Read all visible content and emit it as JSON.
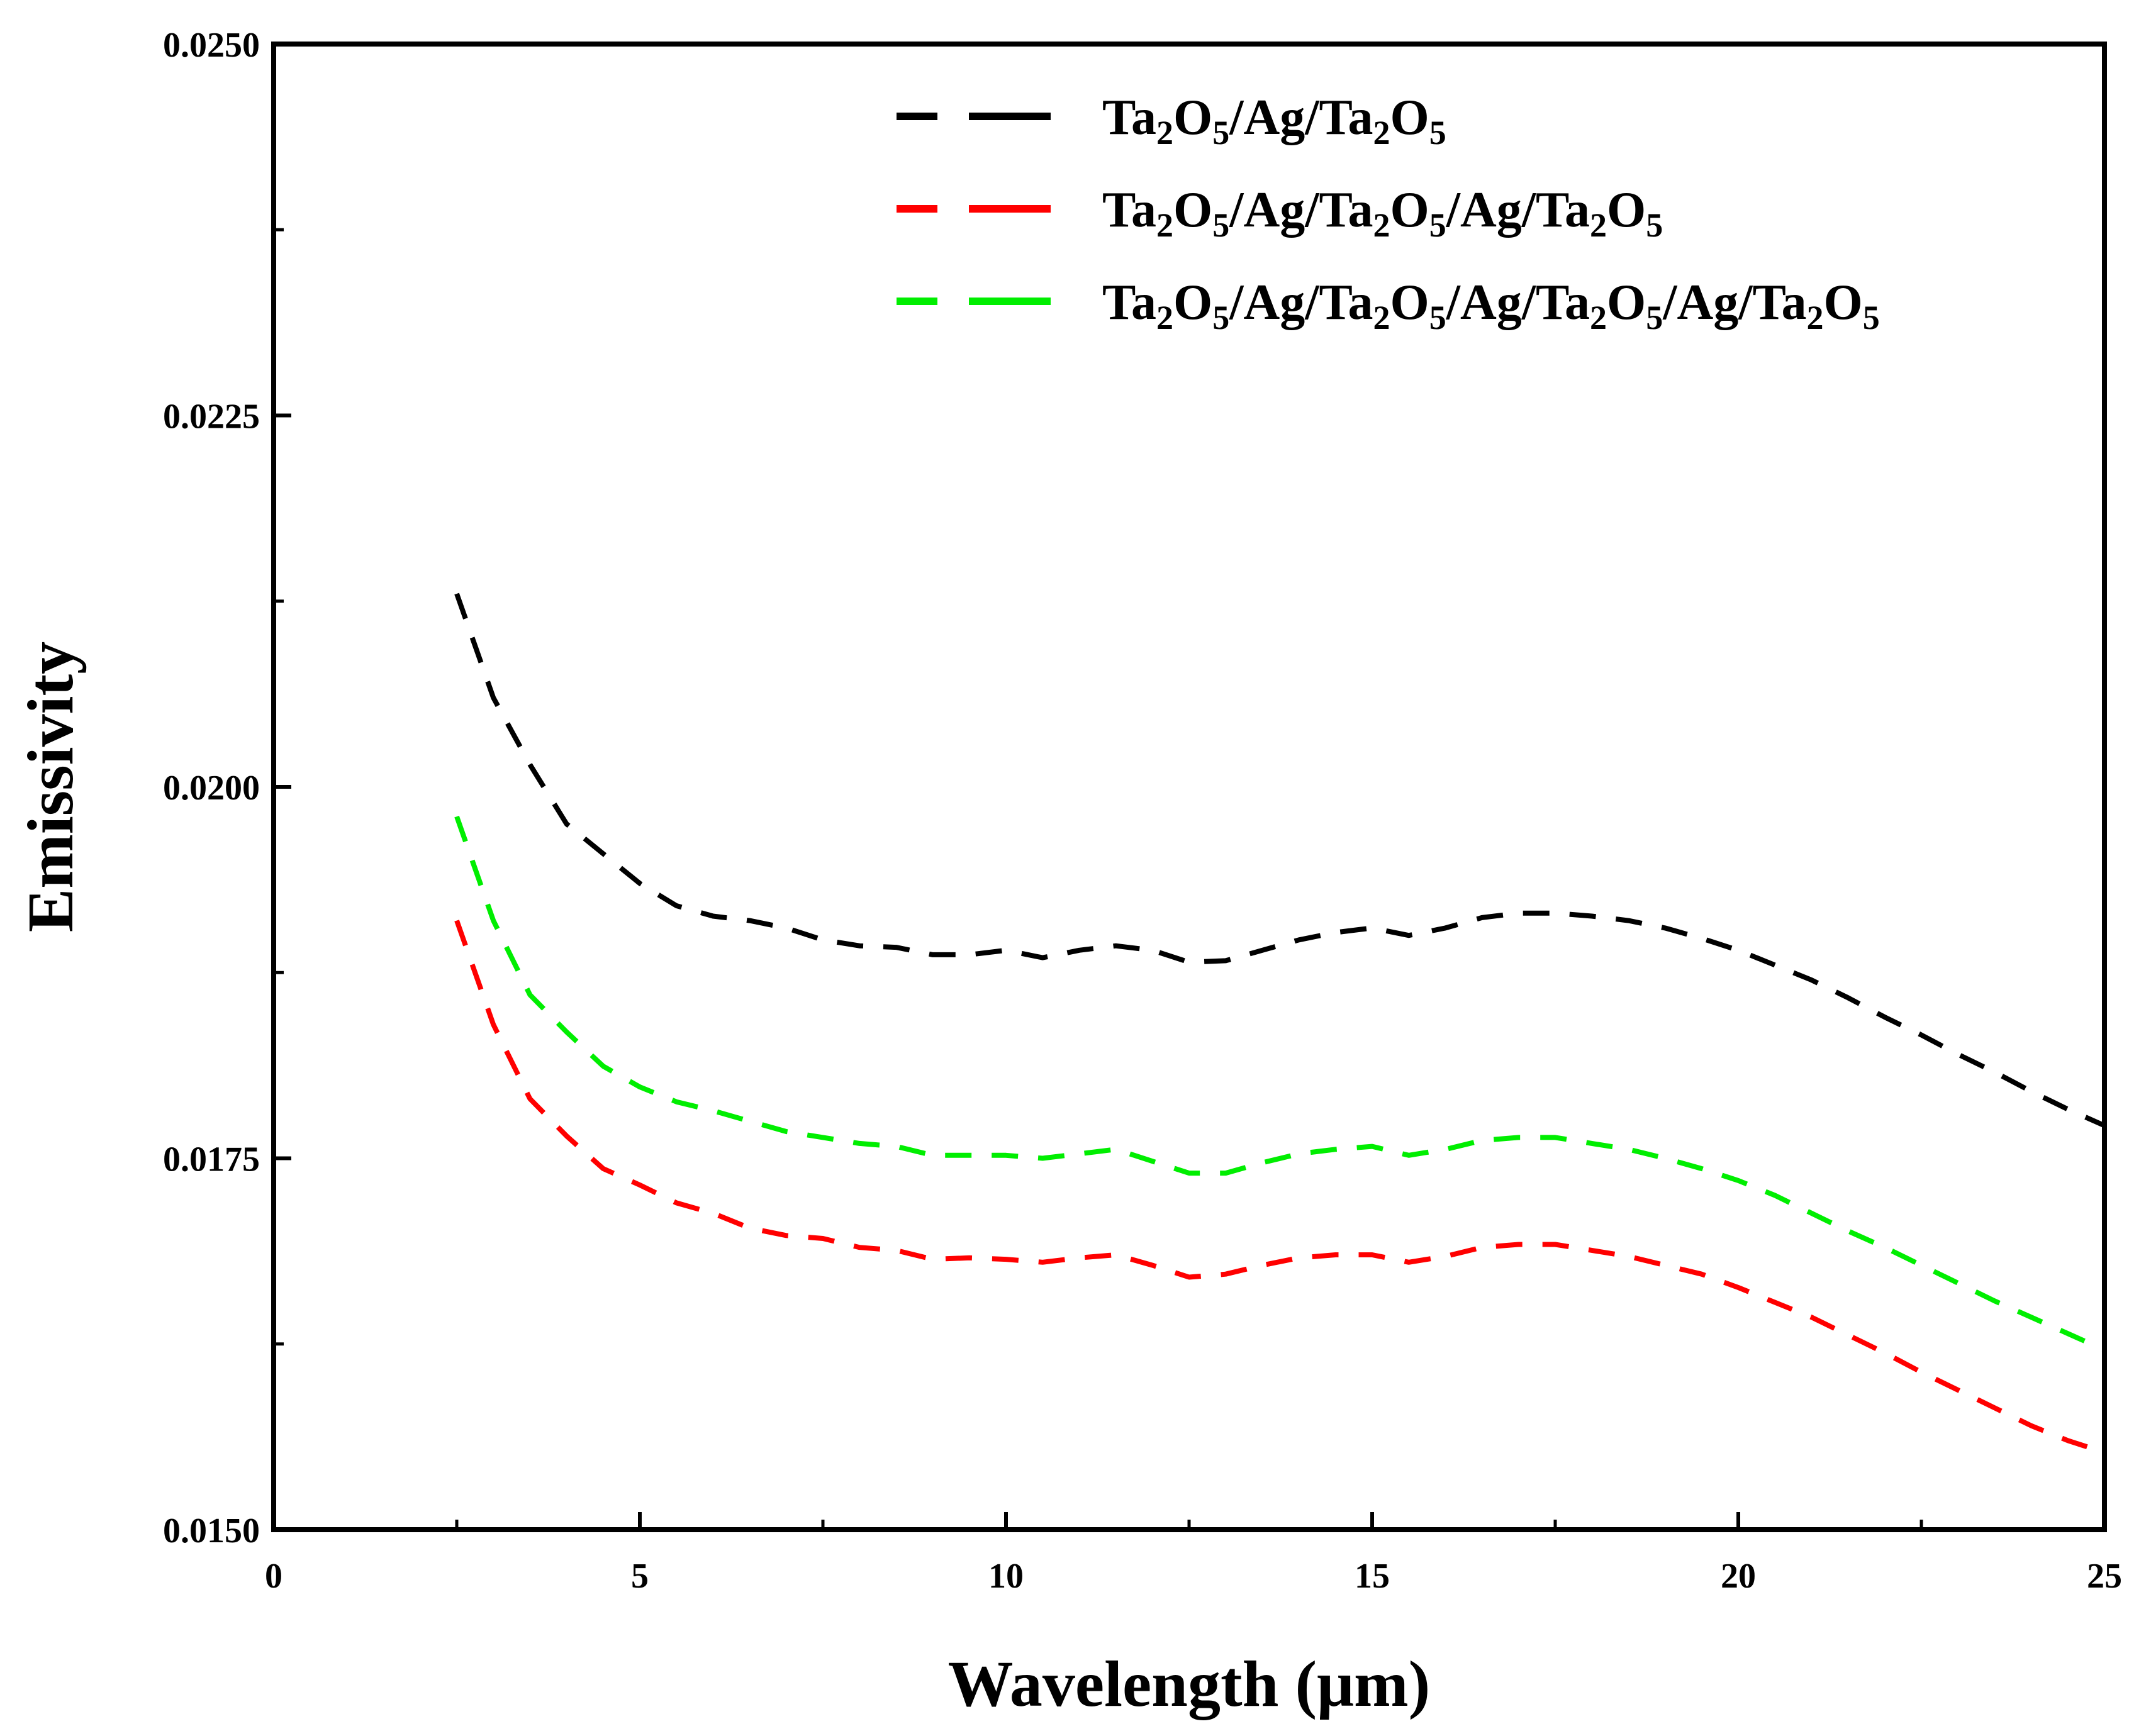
{
  "chart_data": {
    "type": "line",
    "title": "",
    "xlabel": "Wavelength (μm)",
    "ylabel": "Emissivity",
    "xlim": [
      0,
      25
    ],
    "ylim": [
      0.015,
      0.025
    ],
    "xticks": [
      0,
      5,
      10,
      15,
      20,
      25
    ],
    "xtick_labels": [
      "0",
      "5",
      "10",
      "15",
      "20",
      "25"
    ],
    "yticks": [
      0.015,
      0.0175,
      0.02,
      0.0225,
      0.025
    ],
    "ytick_labels": [
      "0.0150",
      "0.0175",
      "0.0200",
      "0.0225",
      "0.0250"
    ],
    "grid": false,
    "legend_position": "top-right",
    "line_style": "dashed",
    "series": [
      {
        "name": "Ta2O5/Ag/Ta2O5",
        "label_parts": [
          "Ta",
          "2",
          "O",
          "5",
          "/Ag/Ta",
          "2",
          "O",
          "5"
        ],
        "color": "#000000",
        "x": [
          2.5,
          3.0,
          3.5,
          4.0,
          4.5,
          5.0,
          5.5,
          6.0,
          6.5,
          7.0,
          7.5,
          8.0,
          8.5,
          9.0,
          9.5,
          10.0,
          10.5,
          11.0,
          11.5,
          12.0,
          12.5,
          13.0,
          13.5,
          14.0,
          14.5,
          15.0,
          15.5,
          16.0,
          16.5,
          17.0,
          17.5,
          18.0,
          18.5,
          19.0,
          19.5,
          20.0,
          20.5,
          21.0,
          21.5,
          22.0,
          22.5,
          23.0,
          23.5,
          24.0,
          24.5,
          25.0
        ],
        "y": [
          0.0213,
          0.0206,
          0.02015,
          0.01975,
          0.01955,
          0.01935,
          0.0192,
          0.01913,
          0.0191,
          0.01905,
          0.01897,
          0.01893,
          0.01892,
          0.01887,
          0.01887,
          0.0189,
          0.01885,
          0.0189,
          0.01893,
          0.0189,
          0.01882,
          0.01883,
          0.0189,
          0.01897,
          0.01902,
          0.01905,
          0.019,
          0.01905,
          0.01912,
          0.01915,
          0.01915,
          0.01913,
          0.0191,
          0.01905,
          0.01898,
          0.0189,
          0.0188,
          0.0187,
          0.01858,
          0.01845,
          0.01833,
          0.0182,
          0.01808,
          0.01795,
          0.01783,
          0.01772
        ]
      },
      {
        "name": "Ta2O5/Ag/Ta2O5/Ag/Ta2O5",
        "label_parts": [
          "Ta",
          "2",
          "O",
          "5",
          "/Ag/Ta",
          "2",
          "O",
          "5",
          "/Ag/Ta",
          "2",
          "O",
          "5"
        ],
        "color": "#ff0000",
        "x": [
          2.5,
          3.0,
          3.5,
          4.0,
          4.5,
          5.0,
          5.5,
          6.0,
          6.5,
          7.0,
          7.5,
          8.0,
          8.5,
          9.0,
          9.5,
          10.0,
          10.5,
          11.0,
          11.5,
          12.0,
          12.5,
          13.0,
          13.5,
          14.0,
          14.5,
          15.0,
          15.5,
          16.0,
          16.5,
          17.0,
          17.5,
          18.0,
          18.5,
          19.0,
          19.5,
          20.0,
          20.5,
          21.0,
          21.5,
          22.0,
          22.5,
          23.0,
          23.5,
          24.0,
          24.5,
          25.0
        ],
        "y": [
          0.0191,
          0.0184,
          0.0179,
          0.01765,
          0.01743,
          0.01732,
          0.0172,
          0.01713,
          0.01703,
          0.01698,
          0.01696,
          0.0169,
          0.01688,
          0.01682,
          0.01683,
          0.01682,
          0.0168,
          0.01683,
          0.01685,
          0.01678,
          0.0167,
          0.01672,
          0.01678,
          0.01683,
          0.01685,
          0.01685,
          0.0168,
          0.01684,
          0.0169,
          0.01692,
          0.01692,
          0.01688,
          0.01684,
          0.01678,
          0.01672,
          0.01663,
          0.01653,
          0.01643,
          0.01631,
          0.01619,
          0.01606,
          0.01594,
          0.01582,
          0.0157,
          0.0156,
          0.01552
        ]
      },
      {
        "name": "Ta2O5/Ag/Ta2O5/Ag/Ta2O5/Ag/Ta2O5",
        "label_parts": [
          "Ta",
          "2",
          "O",
          "5",
          "/Ag/Ta",
          "2",
          "O",
          "5",
          "/Ag/Ta",
          "2",
          "O",
          "5",
          "/Ag/Ta",
          "2",
          "O",
          "5"
        ],
        "color": "#00ee00",
        "x": [
          2.5,
          3.0,
          3.5,
          4.0,
          4.5,
          5.0,
          5.5,
          6.0,
          6.5,
          7.0,
          7.5,
          8.0,
          8.5,
          9.0,
          9.5,
          10.0,
          10.5,
          11.0,
          11.5,
          12.0,
          12.5,
          13.0,
          13.5,
          14.0,
          14.5,
          15.0,
          15.5,
          16.0,
          16.5,
          17.0,
          17.5,
          18.0,
          18.5,
          19.0,
          19.5,
          20.0,
          20.5,
          21.0,
          21.5,
          22.0,
          22.5,
          23.0,
          23.5,
          24.0,
          24.5,
          25.0
        ],
        "y": [
          0.0198,
          0.0191,
          0.0186,
          0.01835,
          0.01812,
          0.01798,
          0.01788,
          0.01782,
          0.01775,
          0.01768,
          0.01764,
          0.0176,
          0.01758,
          0.01752,
          0.01752,
          0.01752,
          0.0175,
          0.01753,
          0.01756,
          0.01748,
          0.0174,
          0.0174,
          0.01747,
          0.01753,
          0.01756,
          0.01758,
          0.01752,
          0.01756,
          0.01762,
          0.01764,
          0.01764,
          0.0176,
          0.01756,
          0.0175,
          0.01743,
          0.01735,
          0.01725,
          0.01713,
          0.01701,
          0.0169,
          0.01678,
          0.01666,
          0.01654,
          0.01643,
          0.01632,
          0.01621
        ]
      }
    ]
  }
}
